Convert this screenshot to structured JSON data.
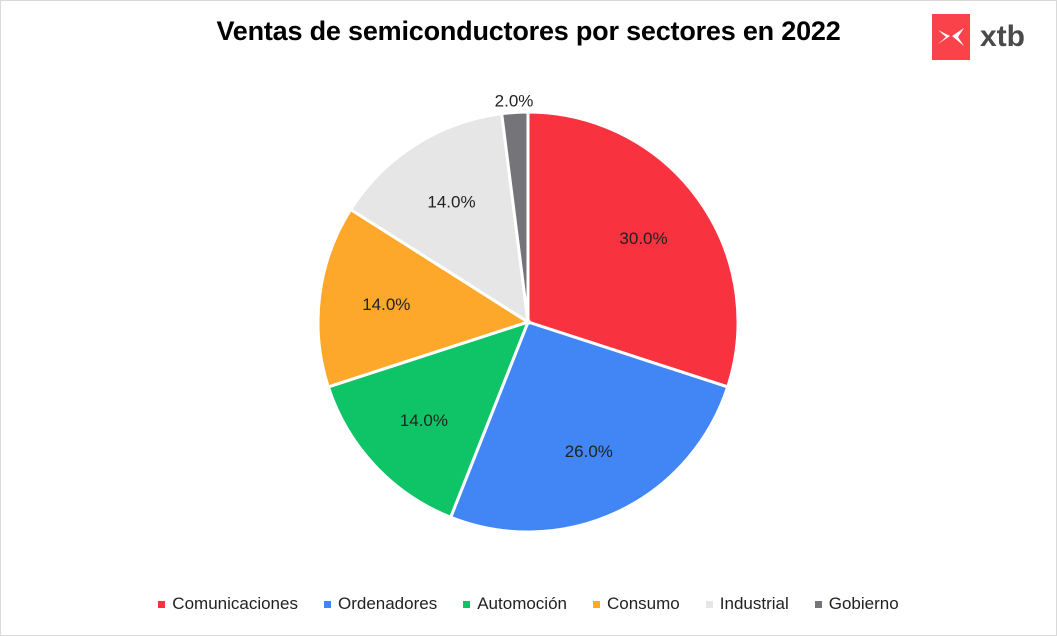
{
  "header": {
    "title": "Ventas de semiconductores por sectores en 2022",
    "logo_text": "xtb",
    "logo_color": "#f9424a"
  },
  "chart_data": {
    "type": "pie",
    "title": "Ventas de semiconductores por sectores en 2022",
    "categories": [
      "Comunicaciones",
      "Ordenadores",
      "Automoción",
      "Consumo",
      "Industrial",
      "Gobierno"
    ],
    "values": [
      30.0,
      26.0,
      14.0,
      14.0,
      14.0,
      2.0
    ],
    "labels": [
      "30.0%",
      "26.0%",
      "14.0%",
      "14.0%",
      "14.0%",
      "2.0%"
    ],
    "colors": [
      "#f93240",
      "#4286f5",
      "#0fc466",
      "#fea82b",
      "#e6e6e6",
      "#757579"
    ],
    "legend_position": "bottom",
    "start_angle": "12 o'clock, clockwise"
  },
  "legend": {
    "items": [
      {
        "label": "Comunicaciones",
        "color": "#f93240"
      },
      {
        "label": "Ordenadores",
        "color": "#4286f5"
      },
      {
        "label": "Automoción",
        "color": "#0fc466"
      },
      {
        "label": "Consumo",
        "color": "#fea82b"
      },
      {
        "label": "Industrial",
        "color": "#e6e6e6"
      },
      {
        "label": "Gobierno",
        "color": "#757579"
      }
    ]
  }
}
